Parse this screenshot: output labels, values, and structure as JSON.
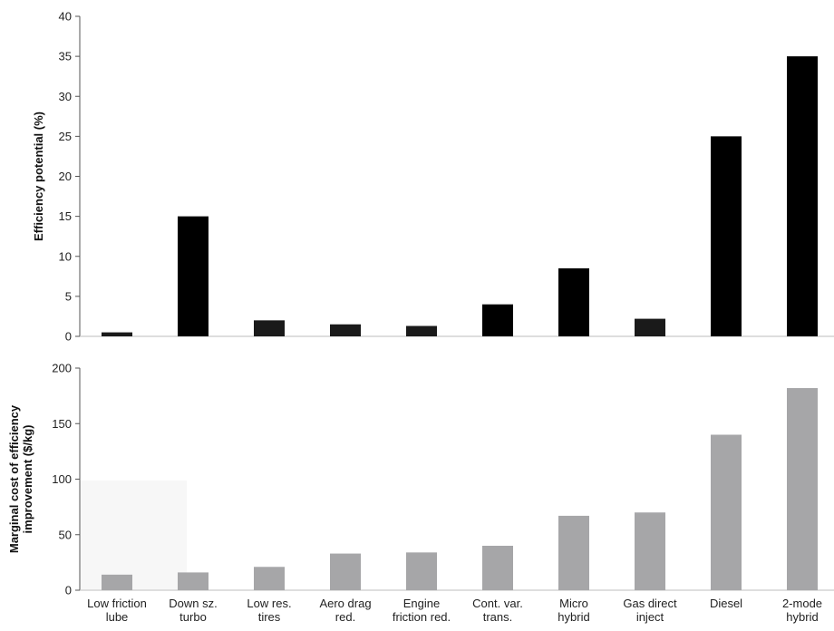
{
  "chart_data": [
    {
      "type": "bar",
      "categories": [
        [
          "Low friction",
          "lube"
        ],
        [
          "Down sz.",
          "turbo"
        ],
        [
          "Low res.",
          "tires"
        ],
        [
          "Aero drag",
          "red."
        ],
        [
          "Engine",
          "friction red."
        ],
        [
          "Cont. var.",
          "trans."
        ],
        [
          "Micro",
          "hybrid"
        ],
        [
          "Gas direct",
          "inject"
        ],
        [
          "Diesel",
          ""
        ],
        [
          "2-mode",
          "hybrid"
        ]
      ],
      "values": [
        0.5,
        15,
        2,
        1.5,
        1.3,
        4,
        8.5,
        2.2,
        25,
        35
      ],
      "ylabel": [
        "Efficiency potential (%)"
      ],
      "ylim": [
        0,
        40
      ],
      "yticks": [
        0,
        5,
        10,
        15,
        20,
        25,
        30,
        35,
        40
      ],
      "bar_colors": [
        "#1a1a1a",
        "#000000",
        "#1a1a1a",
        "#1a1a1a",
        "#1a1a1a",
        "#000000",
        "#000000",
        "#1a1a1a",
        "#000000",
        "#000000"
      ],
      "grid": false
    },
    {
      "type": "bar",
      "categories": [
        [
          "Low friction",
          "lube"
        ],
        [
          "Down sz.",
          "turbo"
        ],
        [
          "Low res.",
          "tires"
        ],
        [
          "Aero drag",
          "red."
        ],
        [
          "Engine",
          "friction red."
        ],
        [
          "Cont. var.",
          "trans."
        ],
        [
          "Micro",
          "hybrid"
        ],
        [
          "Gas direct",
          "inject"
        ],
        [
          "Diesel",
          ""
        ],
        [
          "2-mode",
          "hybrid"
        ]
      ],
      "values": [
        14,
        16,
        21,
        33,
        34,
        40,
        67,
        70,
        140,
        182
      ],
      "ylabel": [
        "Marginal cost of efficiency",
        "improvement ($/kg)"
      ],
      "ylim": [
        0,
        200
      ],
      "yticks": [
        0,
        50,
        100,
        150,
        200
      ],
      "bar_color": "#a6a6a8",
      "grid": false
    }
  ]
}
